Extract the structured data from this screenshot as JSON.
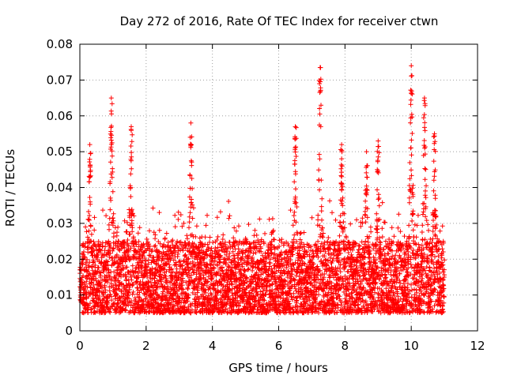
{
  "chart_data": {
    "type": "scatter",
    "title": "Day 272 of 2016, Rate Of TEC Index for receiver ctwn",
    "xlabel": "GPS time / hours",
    "ylabel": "ROTI / TECUs",
    "xlim": [
      0,
      12
    ],
    "ylim": [
      0,
      0.08
    ],
    "xticks": [
      0,
      2,
      4,
      6,
      8,
      10,
      12
    ],
    "xtick_labels": [
      "0",
      "2",
      "4",
      "6",
      "8",
      "10",
      "12"
    ],
    "yticks": [
      0,
      0.01,
      0.02,
      0.03,
      0.04,
      0.05,
      0.06,
      0.07,
      0.08
    ],
    "ytick_labels": [
      "0",
      "0.01",
      "0.02",
      "0.03",
      "0.04",
      "0.05",
      "0.06",
      "0.07",
      "0.08"
    ],
    "grid": true,
    "marker": "plus",
    "color": "#ff0000",
    "x_data_range": [
      0,
      11
    ],
    "baseline_band": [
      0.005,
      0.025
    ],
    "peaks": [
      {
        "x": 0.3,
        "y": 0.052
      },
      {
        "x": 0.95,
        "y": 0.065
      },
      {
        "x": 1.55,
        "y": 0.057
      },
      {
        "x": 3.35,
        "y": 0.058
      },
      {
        "x": 6.5,
        "y": 0.057
      },
      {
        "x": 7.25,
        "y": 0.0735
      },
      {
        "x": 7.9,
        "y": 0.052
      },
      {
        "x": 8.65,
        "y": 0.05
      },
      {
        "x": 9.0,
        "y": 0.053
      },
      {
        "x": 10.0,
        "y": 0.074
      },
      {
        "x": 10.4,
        "y": 0.065
      },
      {
        "x": 10.7,
        "y": 0.055
      }
    ]
  }
}
